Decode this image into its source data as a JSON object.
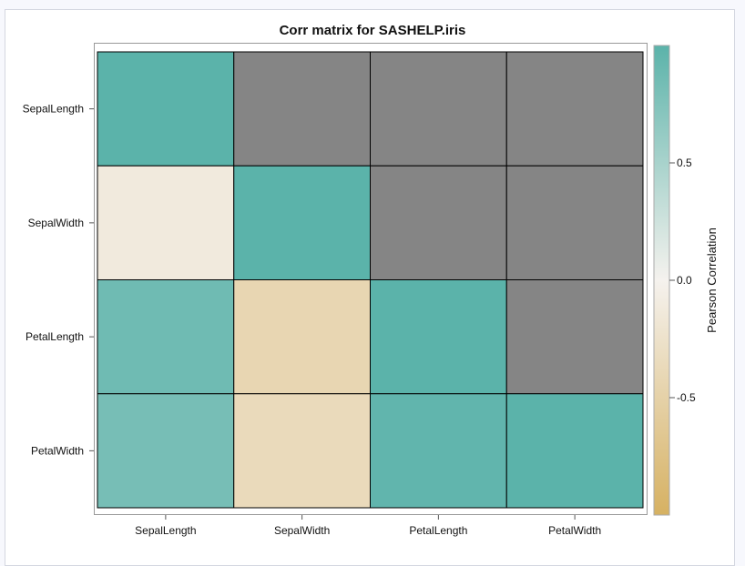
{
  "chart_data": {
    "type": "heatmap",
    "title": "Corr matrix for SASHELP.iris",
    "variables": [
      "SepalLength",
      "SepalWidth",
      "PetalLength",
      "PetalWidth"
    ],
    "matrix": [
      [
        1.0,
        null,
        null,
        null
      ],
      [
        -0.118,
        1.0,
        null,
        null
      ],
      [
        0.872,
        -0.428,
        1.0,
        null
      ],
      [
        0.818,
        -0.366,
        0.963,
        1.0
      ]
    ],
    "masked_color": "#858585",
    "colorbar": {
      "label": "Pearson Correlation",
      "range": [
        -1,
        1
      ],
      "ticks": [
        0.5,
        0.0,
        -0.5
      ],
      "tick_labels": [
        "0.5",
        "0.0",
        "-0.5"
      ],
      "colors": {
        "low": "#d6b162",
        "mid": "#f5f2ee",
        "high": "#5bb3aa"
      }
    },
    "legend": "right"
  }
}
